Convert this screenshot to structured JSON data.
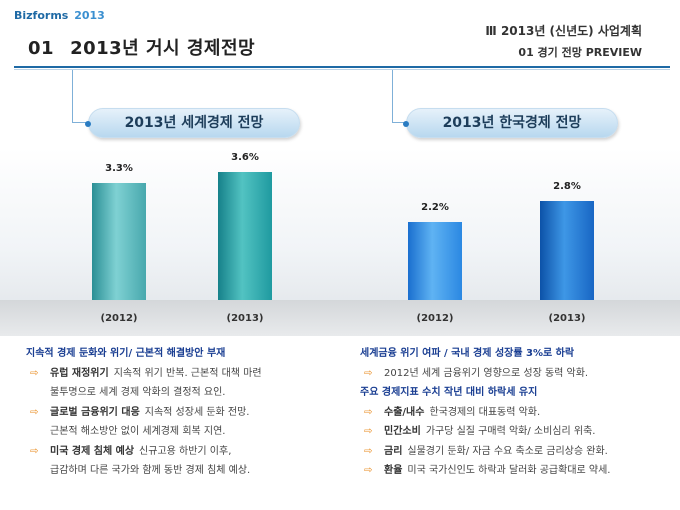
{
  "header": {
    "brand": "Bizforms",
    "brand_year": "2013",
    "number": "01",
    "title": "2013년 거시 경제전망",
    "section": "Ⅲ  2013년 (신년도) 사업계획",
    "subsection": "01  경기 전망 PREVIEW"
  },
  "colors": {
    "accent": "#1f6aa5",
    "heading_blue": "#1a3e92",
    "arrow_orange": "#e88a1c"
  },
  "chart_data": [
    {
      "type": "bar",
      "title": "2013년 세계경제 전망",
      "categories": [
        "(2012)",
        "(2013)"
      ],
      "values": [
        3.3,
        3.6
      ],
      "value_labels": [
        "3.3%",
        "3.6%"
      ],
      "ylim": [
        0,
        4.0
      ]
    },
    {
      "type": "bar",
      "title": "2013년 한국경제 전망",
      "categories": [
        "(2012)",
        "(2013)"
      ],
      "values": [
        2.2,
        2.8
      ],
      "value_labels": [
        "2.2%",
        "2.8%"
      ],
      "ylim": [
        0,
        4.0
      ]
    }
  ],
  "left_panel": {
    "heading": "지속적 경제 둔화와 위기/ 근본적 해결방안 부재",
    "items": [
      {
        "key": "유럽 재정위기",
        "text": "지속적 위기 반복. 근본적 대책 마련",
        "cont": "불투명으로 세계 경제 악화의 결정적 요인."
      },
      {
        "key": "글로벌 금융위기 대응",
        "text": "지속적 성장세 둔화 전망.",
        "cont": "근본적 해소방안 없이 세계경제 회복 지연."
      },
      {
        "key": "미국 경제 침체 예상",
        "text": "신규고용 하반기 이후,",
        "cont": "급감하며 다른 국가와 함께 동반 경제 침체 예상."
      }
    ]
  },
  "right_panel": {
    "heading": "세계금융 위기 여파 / 국내 경제 성장률 3%로 하락",
    "line1": "2012년 세계 금융위기 영향으로 성장 동력 악화.",
    "heading2": "주요 경제지표 수치 작년 대비 하락세 유지",
    "items": [
      {
        "key": "수출/내수",
        "text": "한국경제의 대표동력 악화."
      },
      {
        "key": "민간소비",
        "text": "가구당 실질 구매력 악화/ 소비심리 위축."
      },
      {
        "key": "금리",
        "text": "실물경기 둔화/ 자금 수요 축소로 금리상승 완화."
      },
      {
        "key": "환율",
        "text": "미국 국가신인도 하락과 달러화 공급확대로 약세."
      }
    ]
  }
}
